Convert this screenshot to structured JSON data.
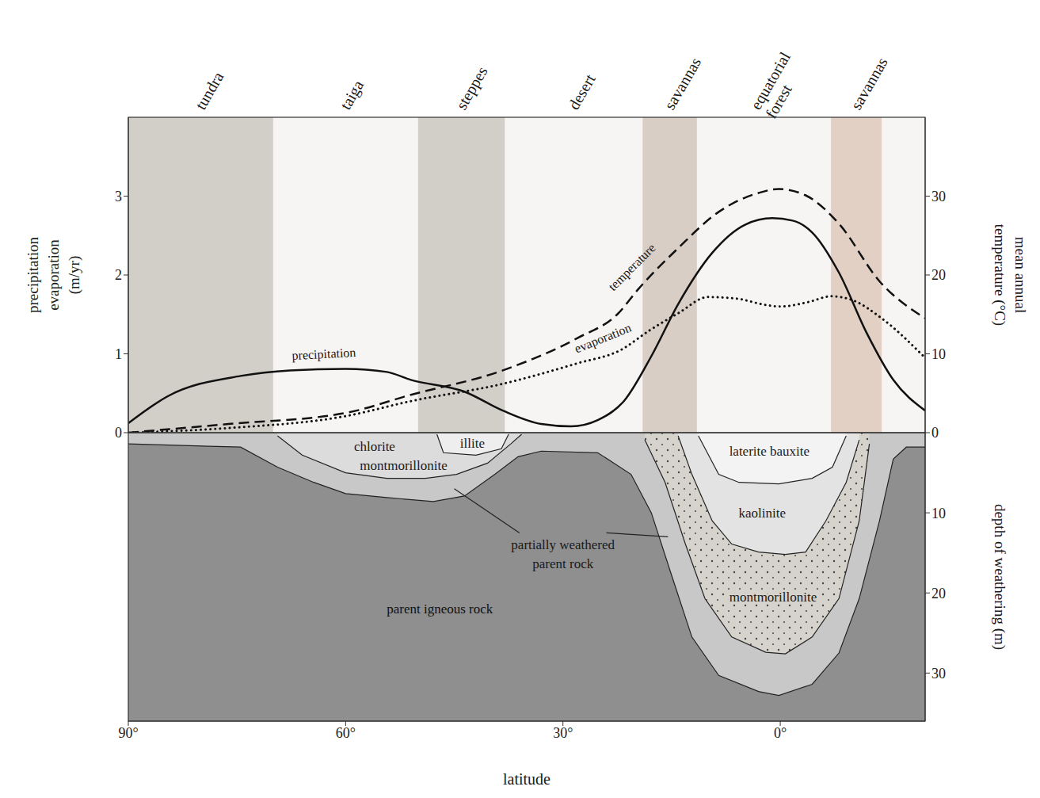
{
  "chart_data": [
    {
      "type": "line",
      "ylabel": [
        "precipitation",
        "evaporation",
        "(m/yr)"
      ],
      "y2label": [
        "mean annual",
        "temperature (°C)"
      ],
      "xlim": [
        90,
        -20
      ],
      "tick_labels": "y",
      "ylim": [
        0,
        4
      ],
      "yticks": [
        0,
        1,
        2,
        3
      ],
      "y2lim": [
        0,
        40
      ],
      "y2ticks": [
        10,
        20,
        30
      ],
      "bands": [
        {
          "name": "tundra",
          "from": 90,
          "to": 70,
          "color": "#d2cfc9"
        },
        {
          "name": "taiga",
          "from": 70,
          "to": 50,
          "color": "#f6f5f3"
        },
        {
          "name": "steppes",
          "from": 50,
          "to": 38,
          "color": "#d2cfc9"
        },
        {
          "name": "desert",
          "from": 38,
          "to": 19,
          "color": "#f6f5f3"
        },
        {
          "name": "savannas",
          "from": 19,
          "to": 11.5,
          "color": "#d8cec6"
        },
        {
          "name": "equatorial forest",
          "from": 11.5,
          "to": -7,
          "color": "#f6f5f3"
        },
        {
          "name": "savannas",
          "from": -7,
          "to": -14,
          "color": "#e2d0c4"
        }
      ],
      "series": [
        {
          "name": "precipitation",
          "color": "#111111",
          "line_style": "solid",
          "x": [
            90,
            84.6,
            74.5,
            67.7,
            60,
            54.3,
            51,
            43.6,
            38.3,
            33,
            28.9,
            25.2,
            21.5,
            17.8,
            14.1,
            9.4,
            4.8,
            1.1,
            -1.7,
            -4.4,
            -8.1,
            -11.9,
            -15.6,
            -20
          ],
          "values": [
            0.12,
            0.46,
            0.72,
            0.79,
            0.81,
            0.77,
            0.67,
            0.52,
            0.28,
            0.11,
            0.08,
            0.16,
            0.41,
            0.97,
            1.63,
            2.28,
            2.64,
            2.72,
            2.69,
            2.54,
            2.03,
            1.27,
            0.67,
            0.28
          ]
        },
        {
          "name": "evaporation",
          "color": "#111111",
          "line_style": "dotted",
          "x": [
            90,
            76,
            60,
            51,
            38.3,
            28,
            22,
            18,
            14,
            10,
            6,
            2,
            0,
            -4,
            -7,
            -10,
            -14,
            -20
          ],
          "values": [
            0,
            0.06,
            0.21,
            0.4,
            0.62,
            0.88,
            1.05,
            1.3,
            1.52,
            1.72,
            1.7,
            1.62,
            1.6,
            1.66,
            1.73,
            1.68,
            1.45,
            0.95
          ]
        },
        {
          "name": "temperature",
          "color": "#111111",
          "line_style": "dashed",
          "axis": "y2",
          "x": [
            90,
            76.2,
            60,
            51,
            38.3,
            28,
            22.4,
            19.6,
            14.1,
            8.5,
            3,
            0.2,
            -3.5,
            -8.1,
            -13.7,
            -20
          ],
          "values": [
            0,
            1.1,
            2.5,
            4.8,
            7.9,
            12,
            15.1,
            18.2,
            23.4,
            28,
            30.4,
            30.9,
            30.1,
            26.5,
            19.2,
            14.5
          ]
        }
      ]
    },
    {
      "type": "area",
      "xlabel": "latitude",
      "xlim": [
        90,
        -20
      ],
      "xticks": [
        {
          "value": 90,
          "label": "90°"
        },
        {
          "value": 60,
          "label": "60°"
        },
        {
          "value": 30,
          "label": "30°"
        },
        {
          "value": 0,
          "label": "0°"
        }
      ],
      "ylabel": "depth of weathering (m)",
      "ylim": [
        36,
        0
      ],
      "yticks": [
        0,
        10,
        20,
        30
      ],
      "background": {
        "name": "parent igneous rock",
        "color": "#8f8f8f"
      },
      "series": [
        {
          "name": [
            "partially weathered",
            "parent rock"
          ],
          "color": "#c8c8c8",
          "x": [
            90,
            74.5,
            69.4,
            64.4,
            60,
            54.3,
            47.9,
            43.6,
            39.4,
            36.2,
            33,
            25.2,
            20.6,
            17.8,
            15,
            12.2,
            8.5,
            3,
            0.2,
            -4.4,
            -8.1,
            -10.9,
            -13.7,
            -15.6,
            -17.4,
            -20
          ],
          "values": [
            1.4,
            1.8,
            4.3,
            6.2,
            7.6,
            8.1,
            8.6,
            7.9,
            5.2,
            3,
            2.3,
            2.5,
            5.2,
            10,
            17.8,
            25.5,
            30.3,
            32.3,
            32.8,
            31.4,
            27.5,
            20.7,
            11,
            3.3,
            1.8,
            1.8
          ]
        },
        {
          "name": [
            "chlorite",
            "montmorillonite"
          ],
          "color": "#dcdcdc",
          "x": [
            69.4,
            66,
            60,
            54.3,
            49,
            44.7,
            40.4,
            37.2,
            35.7
          ],
          "values": [
            0.4,
            2.8,
            5,
            5.7,
            5.7,
            5.2,
            3.8,
            1.4,
            0.2
          ]
        },
        {
          "name": "illite",
          "color": "#eeeeee",
          "x": [
            47.4,
            46.5,
            42,
            38.5,
            37.5
          ],
          "values": [
            0.2,
            2.5,
            2.8,
            2,
            0.2
          ]
        },
        {
          "name": "montmorillonite",
          "color": "#d6d3cc",
          "marker": "dots",
          "x": [
            18.7,
            15.9,
            13.1,
            10.4,
            6.7,
            2,
            -0.7,
            -4.4,
            -8.1,
            -10.9,
            -12.3
          ],
          "values": [
            0.9,
            6.2,
            13.9,
            20.7,
            25.5,
            27.4,
            27.6,
            25.5,
            20.7,
            11,
            1.4
          ]
        },
        {
          "name": "kaolinite",
          "color": "#e3e3e3",
          "x": [
            14.1,
            12.2,
            9.4,
            6.7,
            3,
            -0.7,
            -3.5,
            -6.3,
            -9.1,
            -10.9
          ],
          "values": [
            0.4,
            5.2,
            11,
            13.9,
            14.9,
            15.2,
            14.9,
            11,
            6.2,
            0.9
          ]
        },
        {
          "name": "laterite bauxite",
          "color": "#f3f3f3",
          "x": [
            11.3,
            8.5,
            5.7,
            0.2,
            -4.4,
            -7.2,
            -9.1
          ],
          "values": [
            0.4,
            5.2,
            6.2,
            6.4,
            5.7,
            4.3,
            0.4
          ]
        }
      ]
    }
  ]
}
